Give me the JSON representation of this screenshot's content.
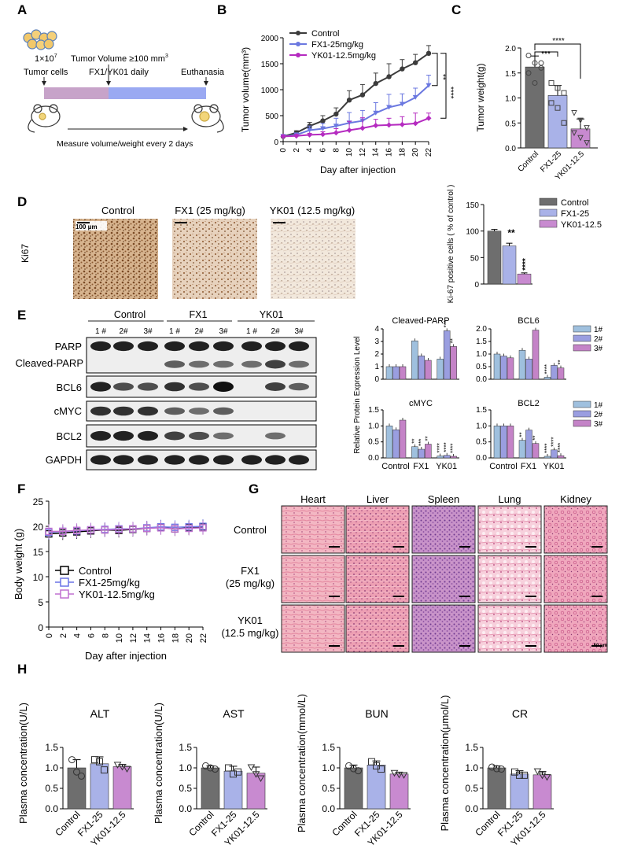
{
  "panel_labels": [
    "A",
    "B",
    "C",
    "D",
    "E",
    "F",
    "G",
    "H"
  ],
  "panelA": {
    "cells": "1×10",
    "cells_exp": "7",
    "tumor_volume": "Tumor Volume ≥100 mm",
    "tumor_volume_exp": "3",
    "tumor_cells": "Tumor cells",
    "treatment": "FX1/YK01  daily",
    "euthanasia": "Euthanasia",
    "measure": "Measure volume/weight every 2 days"
  },
  "panelD": {
    "row_label": "Ki67",
    "columns": [
      "Control",
      "FX1 (25 mg/kg)",
      "YK01 (12.5 mg/kg)"
    ],
    "scale": "100 μm"
  },
  "panelE": {
    "groups": [
      "Control",
      "FX1",
      "YK01"
    ],
    "lanes": [
      "1 #",
      "2#",
      "3#",
      "1 #",
      "2#",
      "3#",
      "1 #",
      "2#",
      "3#"
    ],
    "rows": [
      "PARP",
      "Cleaved-PARP",
      "BCL6",
      "cMYC",
      "BCL2",
      "GAPDH"
    ],
    "ylabel": "Relative Protein Expression Level",
    "legend": [
      "1#",
      "2#",
      "3#"
    ]
  },
  "panelG": {
    "columns": [
      "Heart",
      "Liver",
      "Spleen",
      "Lung",
      "Kidney"
    ],
    "rows": [
      [
        "Control"
      ],
      [
        "FX1",
        "(25 mg/kg)"
      ],
      [
        "YK01",
        "(12.5 mg/kg)"
      ]
    ],
    "scale": "50 μm"
  },
  "colors": {
    "control": "#6e6e6e",
    "fx1": "#a9b2e8",
    "yk01": "#c88ad0",
    "lineC": "#3c3c3c",
    "lineF": "#6b78e0",
    "lineY": "#b52bc0",
    "e1": "#9fc0de",
    "e2": "#9a9ee0",
    "e3": "#c483c7"
  },
  "chart_data": [
    {
      "panel": "B",
      "type": "line",
      "xlabel": "Day after injection",
      "ylabel": "Tumor volume(mm³)",
      "x": [
        0,
        2,
        4,
        6,
        8,
        10,
        12,
        14,
        16,
        18,
        20,
        22
      ],
      "ylim": [
        0,
        2000
      ],
      "yticks": [
        0,
        500,
        1000,
        1500,
        2000
      ],
      "series": [
        {
          "name": "Control",
          "values": [
            100,
            170,
            300,
            400,
            530,
            800,
            900,
            1120,
            1250,
            1400,
            1520,
            1700
          ],
          "err": [
            30,
            40,
            70,
            100,
            120,
            180,
            200,
            200,
            250,
            180,
            160,
            150
          ]
        },
        {
          "name": "FX1-25mg/kg",
          "values": [
            100,
            130,
            220,
            250,
            300,
            360,
            400,
            550,
            660,
            720,
            850,
            1080
          ],
          "err": [
            25,
            30,
            80,
            100,
            150,
            200,
            200,
            200,
            250,
            200,
            180,
            200
          ]
        },
        {
          "name": "YK01-12.5mg/kg",
          "values": [
            100,
            110,
            130,
            140,
            170,
            220,
            260,
            310,
            320,
            330,
            350,
            450
          ],
          "err": [
            20,
            30,
            30,
            50,
            80,
            170,
            200,
            120,
            130,
            150,
            200,
            100
          ]
        }
      ],
      "annotations": [
        "**",
        "****"
      ]
    },
    {
      "panel": "C",
      "type": "bar",
      "ylabel": "Tumor weight(g)",
      "categories": [
        "Control",
        "FX1-25",
        "YK01-12.5"
      ],
      "values": [
        1.62,
        1.05,
        0.38
      ],
      "err": [
        0.22,
        0.2,
        0.2
      ],
      "ylim": [
        0,
        2.0
      ],
      "yticks": [
        "0.0",
        "0.5",
        "1.0",
        "1.5",
        "2.0"
      ],
      "points": [
        [
          1.85,
          1.7,
          1.6,
          1.5,
          1.3,
          1.7
        ],
        [
          1.3,
          1.2,
          1.1,
          0.9,
          0.8,
          0.5
        ],
        [
          0.7,
          0.55,
          0.4,
          0.3,
          0.2,
          0.1
        ]
      ],
      "annotations": [
        "***",
        "****"
      ]
    },
    {
      "panel": "D",
      "type": "bar",
      "ylabel": "Ki-67 positive cells ( % of control )",
      "categories": [
        "Control",
        "FX1-25",
        "YK01-12.5"
      ],
      "values": [
        100,
        72,
        19
      ],
      "err": [
        3,
        5,
        2
      ],
      "ylim": [
        0,
        150
      ],
      "yticks": [
        0,
        50,
        100,
        150
      ],
      "legend": [
        "Control",
        "FX1-25",
        "YK01-12.5"
      ],
      "annotations": [
        "**",
        "****"
      ]
    },
    {
      "panel": "E1",
      "type": "bar",
      "title": "Cleaved-PARP",
      "categories": [
        "Control",
        "FX1",
        "YK01"
      ],
      "series": [
        {
          "name": "1#",
          "values": [
            1.0,
            3.05,
            1.6
          ]
        },
        {
          "name": "2#",
          "values": [
            1.0,
            1.85,
            3.85
          ]
        },
        {
          "name": "3#",
          "values": [
            1.0,
            1.5,
            2.6
          ]
        }
      ],
      "ylim": [
        0,
        4
      ],
      "yticks": [
        0,
        1,
        2,
        3,
        4
      ],
      "annotations": [
        "***",
        "**"
      ]
    },
    {
      "panel": "E2",
      "type": "bar",
      "title": "BCL6",
      "categories": [
        "Control",
        "FX1",
        "YK01"
      ],
      "series": [
        {
          "name": "1#",
          "values": [
            1.0,
            1.15,
            0.08
          ]
        },
        {
          "name": "2#",
          "values": [
            0.92,
            0.8,
            0.55
          ]
        },
        {
          "name": "3#",
          "values": [
            0.85,
            1.95,
            0.45
          ]
        }
      ],
      "ylim": [
        0,
        2.0
      ],
      "yticks": [
        "0.0",
        "0.5",
        "1.0",
        "1.5",
        "2.0"
      ],
      "annotations": [
        "****",
        "**"
      ]
    },
    {
      "panel": "E3",
      "type": "bar",
      "title": "cMYC",
      "categories": [
        "Control",
        "FX1",
        "YK01"
      ],
      "series": [
        {
          "name": "1#",
          "values": [
            1.0,
            0.35,
            0.06
          ]
        },
        {
          "name": "2#",
          "values": [
            0.88,
            0.27,
            0.08
          ]
        },
        {
          "name": "3#",
          "values": [
            1.18,
            0.43,
            0.05
          ]
        }
      ],
      "ylim": [
        0,
        1.5
      ],
      "yticks": [
        "0.0",
        "0.5",
        "1.0",
        "1.5"
      ],
      "annotations": [
        "**",
        "***",
        "**",
        "****",
        "****",
        "****"
      ]
    },
    {
      "panel": "E4",
      "type": "bar",
      "title": "BCL2",
      "categories": [
        "Control",
        "FX1",
        "YK01"
      ],
      "series": [
        {
          "name": "1#",
          "values": [
            1.0,
            0.55,
            0.05
          ]
        },
        {
          "name": "2#",
          "values": [
            1.0,
            0.87,
            0.25
          ]
        },
        {
          "name": "3#",
          "values": [
            1.0,
            0.45,
            0.07
          ]
        }
      ],
      "ylim": [
        0,
        1.5
      ],
      "yticks": [
        "0.0",
        "0.5",
        "1.0",
        "1.5"
      ],
      "annotations": [
        "**",
        "**",
        "****",
        "****",
        "****"
      ]
    },
    {
      "panel": "F",
      "type": "line",
      "xlabel": "Day after injection",
      "ylabel": "Body weight (g)",
      "x": [
        0,
        2,
        4,
        6,
        8,
        10,
        12,
        14,
        16,
        18,
        20,
        22
      ],
      "ylim": [
        0,
        25
      ],
      "yticks": [
        0,
        5,
        10,
        15,
        20,
        25
      ],
      "series": [
        {
          "name": "Control",
          "values": [
            18.5,
            18.7,
            18.9,
            19.1,
            19.3,
            19.2,
            19.4,
            19.6,
            19.8,
            19.5,
            19.7,
            19.9
          ]
        },
        {
          "name": "FX1-25mg/kg",
          "values": [
            18.8,
            19.0,
            19.1,
            19.3,
            19.4,
            19.5,
            19.5,
            19.7,
            19.9,
            19.8,
            19.9,
            20.0
          ]
        },
        {
          "name": "YK01-12.5mg/kg",
          "values": [
            19.0,
            19.0,
            19.2,
            19.3,
            19.3,
            19.4,
            19.5,
            19.6,
            19.7,
            19.5,
            19.6,
            19.7
          ]
        }
      ]
    },
    {
      "panel": "H",
      "type": "bar",
      "ylabel": "Plasma concentration",
      "charts": [
        {
          "title": "ALT",
          "unit": "(U/L)",
          "values": [
            1.0,
            1.1,
            1.03
          ],
          "err": [
            0.2,
            0.17,
            0.05
          ],
          "ylim": [
            0,
            1.5
          ],
          "points": [
            [
              1.2,
              0.9,
              0.8
            ],
            [
              1.2,
              1.15,
              0.95
            ],
            [
              1.08,
              1.03,
              0.98
            ]
          ]
        },
        {
          "title": "AST",
          "unit": "(U/L)",
          "values": [
            1.0,
            0.92,
            0.87
          ],
          "err": [
            0.05,
            0.12,
            0.15
          ],
          "ylim": [
            0,
            1.5
          ],
          "points": [
            [
              1.05,
              1.0,
              0.97
            ],
            [
              1.0,
              0.85,
              0.9
            ],
            [
              1.02,
              0.85,
              0.75
            ]
          ]
        },
        {
          "title": "BUN",
          "unit": "(mmol/L)",
          "values": [
            1.0,
            1.07,
            0.85
          ],
          "err": [
            0.07,
            0.1,
            0.04
          ],
          "ylim": [
            0,
            1.5
          ],
          "points": [
            [
              1.05,
              0.98,
              0.93
            ],
            [
              1.15,
              1.05,
              0.97
            ],
            [
              0.88,
              0.84,
              0.83
            ]
          ]
        },
        {
          "title": "CR",
          "unit": "(μmol/L)",
          "values": [
            1.0,
            0.85,
            0.83
          ],
          "err": [
            0.05,
            0.08,
            0.08
          ],
          "ylim": [
            0,
            1.5
          ],
          "points": [
            [
              1.02,
              0.98,
              0.97
            ],
            [
              0.9,
              0.82,
              0.82
            ],
            [
              0.92,
              0.82,
              0.78
            ]
          ]
        }
      ],
      "categories": [
        "Control",
        "FX1-25",
        "YK01-12.5"
      ],
      "yticks": [
        "0.0",
        "0.5",
        "1.0",
        "1.5"
      ]
    }
  ]
}
